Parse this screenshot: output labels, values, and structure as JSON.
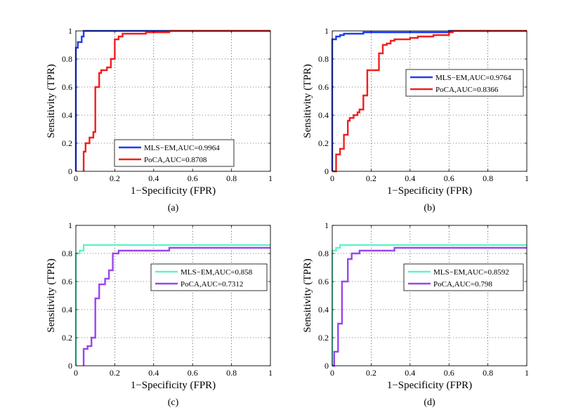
{
  "chart_data": [
    {
      "type": "line",
      "panel_label": "(a)",
      "xlabel": "1−Specificity (FPR)",
      "ylabel": "Sensitivity (TPR)",
      "xlim": [
        0,
        1
      ],
      "ylim": [
        0,
        1
      ],
      "xticks": [
        "0",
        "0.2",
        "0.4",
        "0.6",
        "0.8",
        "1"
      ],
      "yticks": [
        "0",
        "0.2",
        "0.4",
        "0.6",
        "0.8",
        "1"
      ],
      "grid": "dotted",
      "legend_position": "bottom-center",
      "series": [
        {
          "name": "MLS−EM,AUC=0.9964",
          "color": "#1f3df5",
          "x": [
            0,
            0,
            0.01,
            0.01,
            0.03,
            0.03,
            0.04,
            0.04,
            1
          ],
          "y": [
            0,
            0.88,
            0.88,
            0.92,
            0.92,
            0.96,
            0.96,
            1,
            1
          ]
        },
        {
          "name": "PoCA,AUC=0.8708",
          "color": "#f0201e",
          "x": [
            0.04,
            0.04,
            0.05,
            0.05,
            0.07,
            0.07,
            0.09,
            0.09,
            0.1,
            0.1,
            0.12,
            0.12,
            0.13,
            0.13,
            0.16,
            0.16,
            0.18,
            0.18,
            0.2,
            0.2,
            0.22,
            0.22,
            0.24,
            0.24,
            0.36,
            0.36,
            0.48,
            0.48,
            1
          ],
          "y": [
            0,
            0.14,
            0.14,
            0.2,
            0.2,
            0.24,
            0.24,
            0.28,
            0.28,
            0.6,
            0.6,
            0.7,
            0.7,
            0.72,
            0.72,
            0.74,
            0.74,
            0.8,
            0.8,
            0.94,
            0.94,
            0.96,
            0.96,
            0.98,
            0.98,
            0.99,
            0.99,
            1,
            1
          ]
        }
      ]
    },
    {
      "type": "line",
      "panel_label": "(b)",
      "xlabel": "1−Specificity (FPR)",
      "ylabel": "Sensitivity (TPR)",
      "xlim": [
        0,
        1
      ],
      "ylim": [
        0,
        1
      ],
      "xticks": [
        "0",
        "0.2",
        "0.4",
        "0.6",
        "0.8",
        "1"
      ],
      "yticks": [
        "0",
        "0.2",
        "0.4",
        "0.6",
        "0.8",
        "1"
      ],
      "grid": "dotted",
      "legend_position": "center-right",
      "series": [
        {
          "name": "MLS−EM,AUC=0.9764",
          "color": "#1f3df5",
          "x": [
            0,
            0,
            0.02,
            0.02,
            0.04,
            0.04,
            0.06,
            0.06,
            0.16,
            0.16,
            0.6,
            0.6,
            1
          ],
          "y": [
            0,
            0.94,
            0.94,
            0.96,
            0.96,
            0.97,
            0.97,
            0.98,
            0.98,
            0.99,
            0.99,
            1,
            1
          ]
        },
        {
          "name": "PoCA,AUC=0.8366",
          "color": "#f0201e",
          "x": [
            0,
            0.02,
            0.02,
            0.04,
            0.04,
            0.06,
            0.06,
            0.08,
            0.08,
            0.09,
            0.09,
            0.11,
            0.11,
            0.13,
            0.13,
            0.14,
            0.14,
            0.16,
            0.16,
            0.18,
            0.18,
            0.24,
            0.24,
            0.26,
            0.26,
            0.28,
            0.28,
            0.3,
            0.3,
            0.32,
            0.32,
            0.4,
            0.4,
            0.44,
            0.44,
            0.52,
            0.52,
            0.6,
            0.6,
            0.62,
            0.62,
            1
          ],
          "y": [
            0,
            0,
            0.12,
            0.12,
            0.16,
            0.16,
            0.26,
            0.26,
            0.36,
            0.36,
            0.38,
            0.38,
            0.4,
            0.4,
            0.42,
            0.42,
            0.44,
            0.44,
            0.54,
            0.54,
            0.72,
            0.72,
            0.84,
            0.84,
            0.9,
            0.9,
            0.91,
            0.91,
            0.93,
            0.93,
            0.94,
            0.94,
            0.95,
            0.95,
            0.96,
            0.96,
            0.97,
            0.97,
            0.99,
            0.99,
            1,
            1
          ]
        }
      ]
    },
    {
      "type": "line",
      "panel_label": "(c)",
      "xlabel": "1−Specificity (FPR)",
      "ylabel": "Sensitivity (TPR)",
      "xlim": [
        0,
        1
      ],
      "ylim": [
        0,
        1
      ],
      "xticks": [
        "0",
        "0.2",
        "0.4",
        "0.6",
        "0.8",
        "1"
      ],
      "yticks": [
        "0",
        "0.2",
        "0.4",
        "0.6",
        "0.8",
        "1"
      ],
      "grid": "dotted",
      "legend_position": "center-right",
      "series": [
        {
          "name": "MLS−EM,AUC=0.858",
          "color": "#66f2c8",
          "x": [
            0,
            0,
            0.02,
            0.02,
            0.04,
            0.04,
            1
          ],
          "y": [
            0,
            0.8,
            0.8,
            0.82,
            0.82,
            0.86,
            0.86
          ]
        },
        {
          "name": "PoCA,AUC=0.7312",
          "color": "#9b45f0",
          "x": [
            0.04,
            0.04,
            0.06,
            0.06,
            0.08,
            0.08,
            0.1,
            0.1,
            0.12,
            0.12,
            0.15,
            0.15,
            0.17,
            0.17,
            0.19,
            0.19,
            0.22,
            0.22,
            0.24,
            0.24,
            0.48,
            0.48,
            1
          ],
          "y": [
            0,
            0.12,
            0.12,
            0.14,
            0.14,
            0.2,
            0.2,
            0.48,
            0.48,
            0.58,
            0.58,
            0.62,
            0.62,
            0.68,
            0.68,
            0.8,
            0.8,
            0.82,
            0.82,
            0.82,
            0.82,
            0.84,
            0.84
          ]
        }
      ]
    },
    {
      "type": "line",
      "panel_label": "(d)",
      "xlabel": "1−Specificity (FPR)",
      "ylabel": "Sensitivity (TPR)",
      "xlim": [
        0,
        1
      ],
      "ylim": [
        0,
        1
      ],
      "xticks": [
        "0",
        "0.2",
        "0.4",
        "0.6",
        "0.8",
        "1"
      ],
      "yticks": [
        "0",
        "0.2",
        "0.4",
        "0.6",
        "0.8",
        "1"
      ],
      "grid": "dotted",
      "legend_position": "center-right",
      "series": [
        {
          "name": "MLS−EM,AUC=0.8592",
          "color": "#66f2c8",
          "x": [
            0,
            0,
            0.02,
            0.02,
            0.04,
            0.04,
            1
          ],
          "y": [
            0,
            0.82,
            0.82,
            0.84,
            0.84,
            0.86,
            0.86
          ]
        },
        {
          "name": "PoCA,AUC=0.798",
          "color": "#9b45f0",
          "x": [
            0,
            0.01,
            0.01,
            0.03,
            0.03,
            0.05,
            0.05,
            0.08,
            0.08,
            0.1,
            0.1,
            0.14,
            0.14,
            0.32,
            0.32,
            1
          ],
          "y": [
            0,
            0,
            0.1,
            0.1,
            0.3,
            0.3,
            0.6,
            0.6,
            0.76,
            0.76,
            0.8,
            0.8,
            0.82,
            0.82,
            0.84,
            0.84
          ]
        }
      ]
    }
  ]
}
